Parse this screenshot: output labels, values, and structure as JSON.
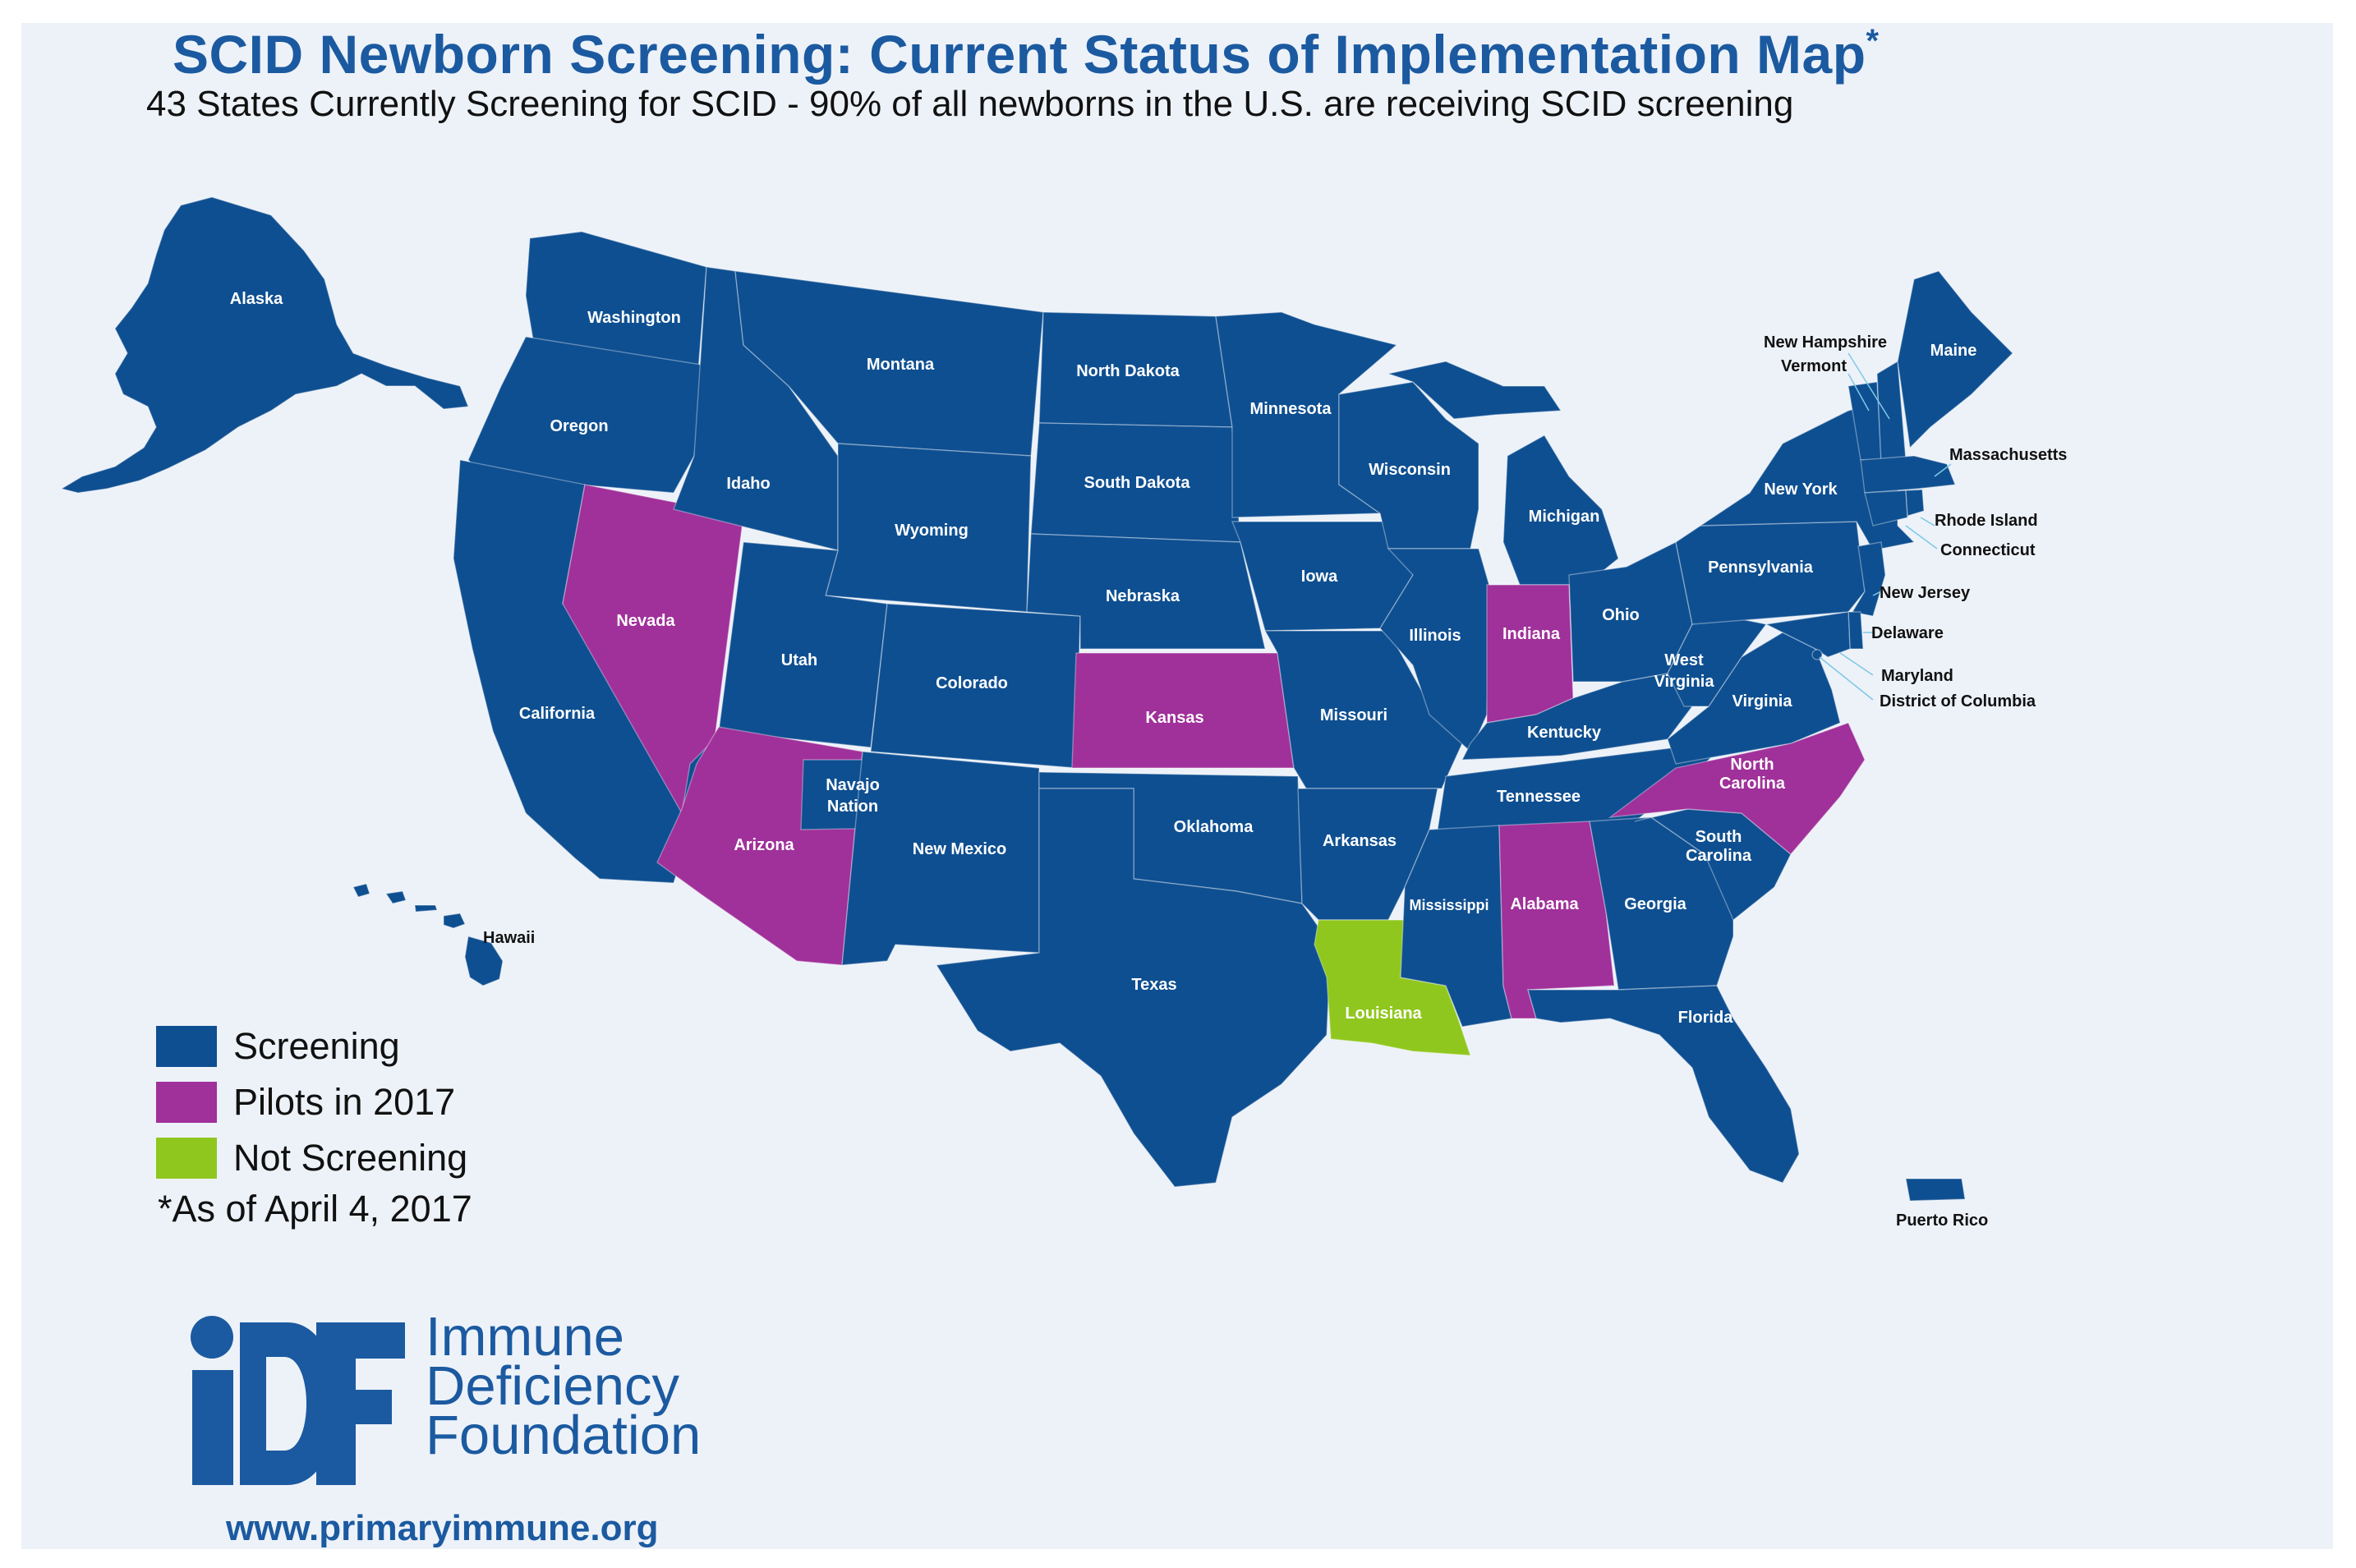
{
  "title": "SCID Newborn Screening: Current Status of Implementation Map",
  "title_mark": "*",
  "subtitle": "43 States Currently Screening for SCID - 90% of all newborns in the U.S. are receiving SCID screening",
  "colors": {
    "screening": "#0e4f91",
    "pilot": "#a0309a",
    "not_screening": "#90c71e",
    "accent": "#1b5aa0"
  },
  "legend": [
    {
      "label": "Screening",
      "status": "screening"
    },
    {
      "label": "Pilots in 2017",
      "status": "pilot"
    },
    {
      "label": "Not Screening",
      "status": "not_screening"
    }
  ],
  "as_of": "*As of April 4, 2017",
  "regions": [
    {
      "id": "alaska",
      "name": "Alaska",
      "status": "screening"
    },
    {
      "id": "hawaii",
      "name": "Hawaii",
      "status": "screening"
    },
    {
      "id": "washington",
      "name": "Washington",
      "status": "screening"
    },
    {
      "id": "oregon",
      "name": "Oregon",
      "status": "screening"
    },
    {
      "id": "california",
      "name": "California",
      "status": "screening"
    },
    {
      "id": "nevada",
      "name": "Nevada",
      "status": "pilot"
    },
    {
      "id": "idaho",
      "name": "Idaho",
      "status": "screening"
    },
    {
      "id": "montana",
      "name": "Montana",
      "status": "screening"
    },
    {
      "id": "wyoming",
      "name": "Wyoming",
      "status": "screening"
    },
    {
      "id": "utah",
      "name": "Utah",
      "status": "screening"
    },
    {
      "id": "arizona",
      "name": "Arizona",
      "status": "pilot"
    },
    {
      "id": "navajo",
      "name": "Navajo Nation",
      "status": "screening"
    },
    {
      "id": "colorado",
      "name": "Colorado",
      "status": "screening"
    },
    {
      "id": "new-mexico",
      "name": "New Mexico",
      "status": "screening"
    },
    {
      "id": "north-dakota",
      "name": "North Dakota",
      "status": "screening"
    },
    {
      "id": "south-dakota",
      "name": "South Dakota",
      "status": "screening"
    },
    {
      "id": "nebraska",
      "name": "Nebraska",
      "status": "screening"
    },
    {
      "id": "kansas",
      "name": "Kansas",
      "status": "pilot"
    },
    {
      "id": "oklahoma",
      "name": "Oklahoma",
      "status": "screening"
    },
    {
      "id": "texas",
      "name": "Texas",
      "status": "screening"
    },
    {
      "id": "minnesota",
      "name": "Minnesota",
      "status": "screening"
    },
    {
      "id": "iowa",
      "name": "Iowa",
      "status": "screening"
    },
    {
      "id": "missouri",
      "name": "Missouri",
      "status": "screening"
    },
    {
      "id": "arkansas",
      "name": "Arkansas",
      "status": "screening"
    },
    {
      "id": "louisiana",
      "name": "Louisiana",
      "status": "not_screening"
    },
    {
      "id": "wisconsin",
      "name": "Wisconsin",
      "status": "screening"
    },
    {
      "id": "illinois",
      "name": "Illinois",
      "status": "screening"
    },
    {
      "id": "michigan",
      "name": "Michigan",
      "status": "screening"
    },
    {
      "id": "indiana",
      "name": "Indiana",
      "status": "pilot"
    },
    {
      "id": "ohio",
      "name": "Ohio",
      "status": "screening"
    },
    {
      "id": "kentucky",
      "name": "Kentucky",
      "status": "screening"
    },
    {
      "id": "tennessee",
      "name": "Tennessee",
      "status": "screening"
    },
    {
      "id": "mississippi",
      "name": "Mississippi",
      "status": "screening"
    },
    {
      "id": "alabama",
      "name": "Alabama",
      "status": "pilot"
    },
    {
      "id": "georgia",
      "name": "Georgia",
      "status": "screening"
    },
    {
      "id": "florida",
      "name": "Florida",
      "status": "screening"
    },
    {
      "id": "south-carolina",
      "name": "South Carolina",
      "status": "screening"
    },
    {
      "id": "north-carolina",
      "name": "North Carolina",
      "status": "pilot"
    },
    {
      "id": "virginia",
      "name": "Virginia",
      "status": "screening"
    },
    {
      "id": "west-virginia",
      "name": "West Virginia",
      "status": "screening"
    },
    {
      "id": "pennsylvania",
      "name": "Pennsylvania",
      "status": "screening"
    },
    {
      "id": "new-york",
      "name": "New York",
      "status": "screening"
    },
    {
      "id": "maine",
      "name": "Maine",
      "status": "screening"
    },
    {
      "id": "new-hampshire",
      "name": "New Hampshire",
      "status": "screening"
    },
    {
      "id": "vermont",
      "name": "Vermont",
      "status": "screening"
    },
    {
      "id": "massachusetts",
      "name": "Massachusetts",
      "status": "screening"
    },
    {
      "id": "rhode-island",
      "name": "Rhode Island",
      "status": "screening"
    },
    {
      "id": "connecticut",
      "name": "Connecticut",
      "status": "screening"
    },
    {
      "id": "new-jersey",
      "name": "New Jersey",
      "status": "screening"
    },
    {
      "id": "delaware",
      "name": "Delaware",
      "status": "screening"
    },
    {
      "id": "maryland",
      "name": "Maryland",
      "status": "screening"
    },
    {
      "id": "district-of-columbia",
      "name": "District of Columbia",
      "status": "screening"
    },
    {
      "id": "puerto-rico",
      "name": "Puerto Rico",
      "status": "screening"
    }
  ],
  "logo": {
    "mark": "iDF",
    "name_lines": [
      "Immune",
      "Deficiency",
      "Foundation"
    ]
  },
  "url": "www.primaryimmune.org"
}
